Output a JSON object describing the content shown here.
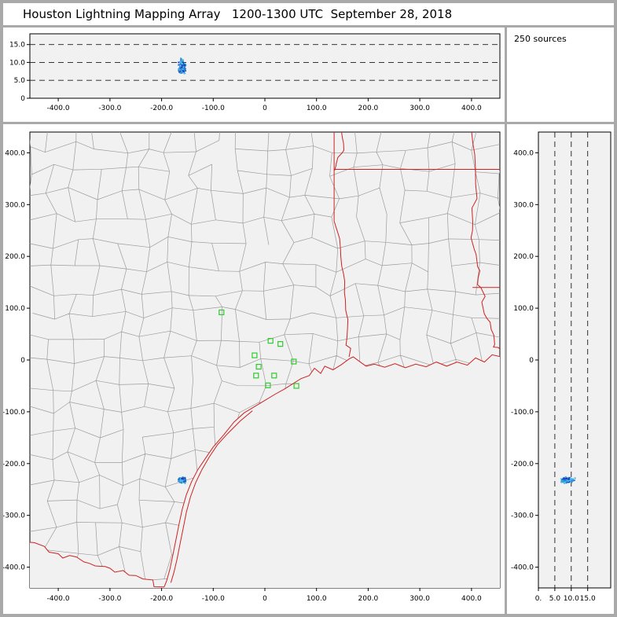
{
  "title": "Houston Lightning Mapping Array   1200-1300 UTC  September 28, 2018",
  "sources_panel": {
    "label": "250 sources"
  },
  "colors": {
    "window_frame": "#a9a9a9",
    "panel_bg": "#ffffff",
    "plot_bg": "#f1f1f1",
    "plot_border": "#000000",
    "county_line": "#9c9c9c",
    "state_line": "#cc2222",
    "dash_line": "#1a1a1a",
    "station": "#2fca2f",
    "source_palette": [
      "#2040c8",
      "#2f6fd0",
      "#26a3dc",
      "#54c8e8",
      "#1b2fa8",
      "#3fb4e4"
    ]
  },
  "lightning_cluster": {
    "count": 250,
    "east_west_km": -160,
    "north_south_km": -232,
    "altitude_km_range": [
      6.0,
      11.5
    ],
    "horizontal_spread_km": 9
  },
  "chart_data": [
    {
      "id": "alt_vs_ew",
      "type": "scatter",
      "description": "source altitude (km) vs east-west distance (km)",
      "xlim": [
        -455,
        455
      ],
      "ylim": [
        0,
        18
      ],
      "x_ticks": [
        -400,
        -300,
        -200,
        -100,
        0,
        100,
        200,
        300,
        400
      ],
      "x_tick_labels": [
        "-400.0",
        "-300.0",
        "-200.0",
        "-100.0",
        "0",
        "100.0",
        "200.0",
        "300.0",
        "400.0"
      ],
      "y_ticks": [
        0,
        5,
        10,
        15
      ],
      "y_tick_labels": [
        "0",
        "5.0",
        "10.0",
        "15.0"
      ],
      "dashed_y": [
        5,
        10,
        15
      ],
      "grid": "dashed horizontal lines at 5, 10, 15 km"
    },
    {
      "id": "plan_view_map",
      "type": "scatter",
      "description": "plan view, north-south vs east-west distance (km); gray county outlines, red state borders and coastline",
      "xlim": [
        -455,
        455
      ],
      "ylim": [
        -440,
        440
      ],
      "x_ticks": [
        -400,
        -300,
        -200,
        -100,
        0,
        100,
        200,
        300,
        400
      ],
      "x_tick_labels": [
        "-400.0",
        "-300.0",
        "-200.0",
        "-100.0",
        "0",
        "100.0",
        "200.0",
        "300.0",
        "400.0"
      ],
      "y_ticks": [
        400,
        300,
        200,
        100,
        0,
        -100,
        -200,
        -300,
        -400
      ],
      "y_tick_labels": [
        "400.0",
        "300.0",
        "200.0",
        "100.0",
        "0",
        "-100.0",
        "-200.0",
        "-300.0",
        "-400.0"
      ],
      "stations_marker": "green open squares",
      "stations": [
        [
          -84,
          92
        ],
        [
          11,
          37
        ],
        [
          30,
          31
        ],
        [
          -20,
          9
        ],
        [
          -12,
          -13
        ],
        [
          -17,
          -30
        ],
        [
          18,
          -30
        ],
        [
          6,
          -49
        ],
        [
          56,
          -3
        ],
        [
          61,
          -50
        ]
      ]
    },
    {
      "id": "alt_vs_ns",
      "type": "scatter",
      "description": "source altitude (km) vs north-south distance (km)",
      "xlim": [
        0,
        22
      ],
      "ylim": [
        -440,
        440
      ],
      "x_ticks": [
        0,
        5,
        10,
        15
      ],
      "x_tick_labels": [
        "0.",
        "5.0",
        "10.0",
        "15.0"
      ],
      "y_ticks": [
        400,
        300,
        200,
        100,
        0,
        -100,
        -200,
        -300,
        -400
      ],
      "y_tick_labels": [
        "400.0",
        "300.0",
        "200.0",
        "100.0",
        "0",
        "-100.0",
        "-200.0",
        "-300.0",
        "-400.0"
      ],
      "dashed_x": [
        5,
        10,
        15
      ]
    }
  ]
}
